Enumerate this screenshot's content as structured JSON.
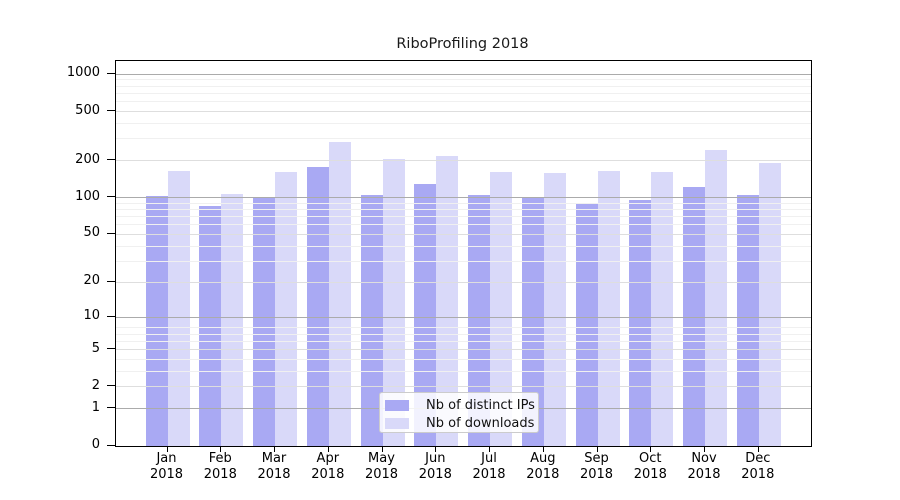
{
  "title": "RiboProfiling 2018",
  "colors": {
    "distinct_ips_bar": "#a9a9f3",
    "downloads_bar": "#d9d9f9",
    "major_power_gridline": "#ababab",
    "labeled_gridline": "#dedede",
    "minor_gridline": "#f0f0f0",
    "axis": "#000000"
  },
  "legend": {
    "items": [
      {
        "label": "Nb of distinct IPs",
        "color": "#a9a9f3"
      },
      {
        "label": "Nb of downloads",
        "color": "#d9d9f9"
      }
    ]
  },
  "x_axis": {
    "months": [
      "Jan",
      "Feb",
      "Mar",
      "Apr",
      "May",
      "Jun",
      "Jul",
      "Aug",
      "Sep",
      "Oct",
      "Nov",
      "Dec"
    ],
    "year": "2018"
  },
  "y_axis": {
    "tick_values": [
      0,
      1,
      2,
      5,
      10,
      20,
      50,
      100,
      200,
      500,
      1000
    ],
    "tick_labels": [
      "0",
      "1",
      "2",
      "5",
      "10",
      "20",
      "50",
      "100",
      "200",
      "500",
      "1000"
    ],
    "minor_gridline_values": [
      3,
      4,
      6,
      7,
      8,
      30,
      40,
      60,
      70,
      80,
      90,
      300,
      400,
      600,
      700,
      800,
      900
    ],
    "scale": "log1p",
    "top_value": 1280
  },
  "chart_data": {
    "type": "bar",
    "title": "RiboProfiling 2018",
    "categories": [
      "Jan 2018",
      "Feb 2018",
      "Mar 2018",
      "Apr 2018",
      "May 2018",
      "Jun 2018",
      "Jul 2018",
      "Aug 2018",
      "Sep 2018",
      "Oct 2018",
      "Nov 2018",
      "Dec 2018"
    ],
    "series": [
      {
        "name": "Nb of distinct IPs",
        "color": "#a9a9f3",
        "values": [
          103,
          85,
          100,
          178,
          106,
          130,
          106,
          100,
          91,
          96,
          122,
          106
        ]
      },
      {
        "name": "Nb of downloads",
        "color": "#d9d9f9",
        "values": [
          165,
          107,
          162,
          285,
          205,
          218,
          162,
          160,
          165,
          162,
          244,
          192
        ]
      }
    ],
    "xlabel": "",
    "ylabel": "",
    "yscale": "log(x+1)",
    "y_ticks": [
      0,
      1,
      2,
      5,
      10,
      20,
      50,
      100,
      200,
      500,
      1000
    ],
    "ylim": [
      0,
      1280
    ],
    "grid": true,
    "legend_position": "lower center"
  }
}
